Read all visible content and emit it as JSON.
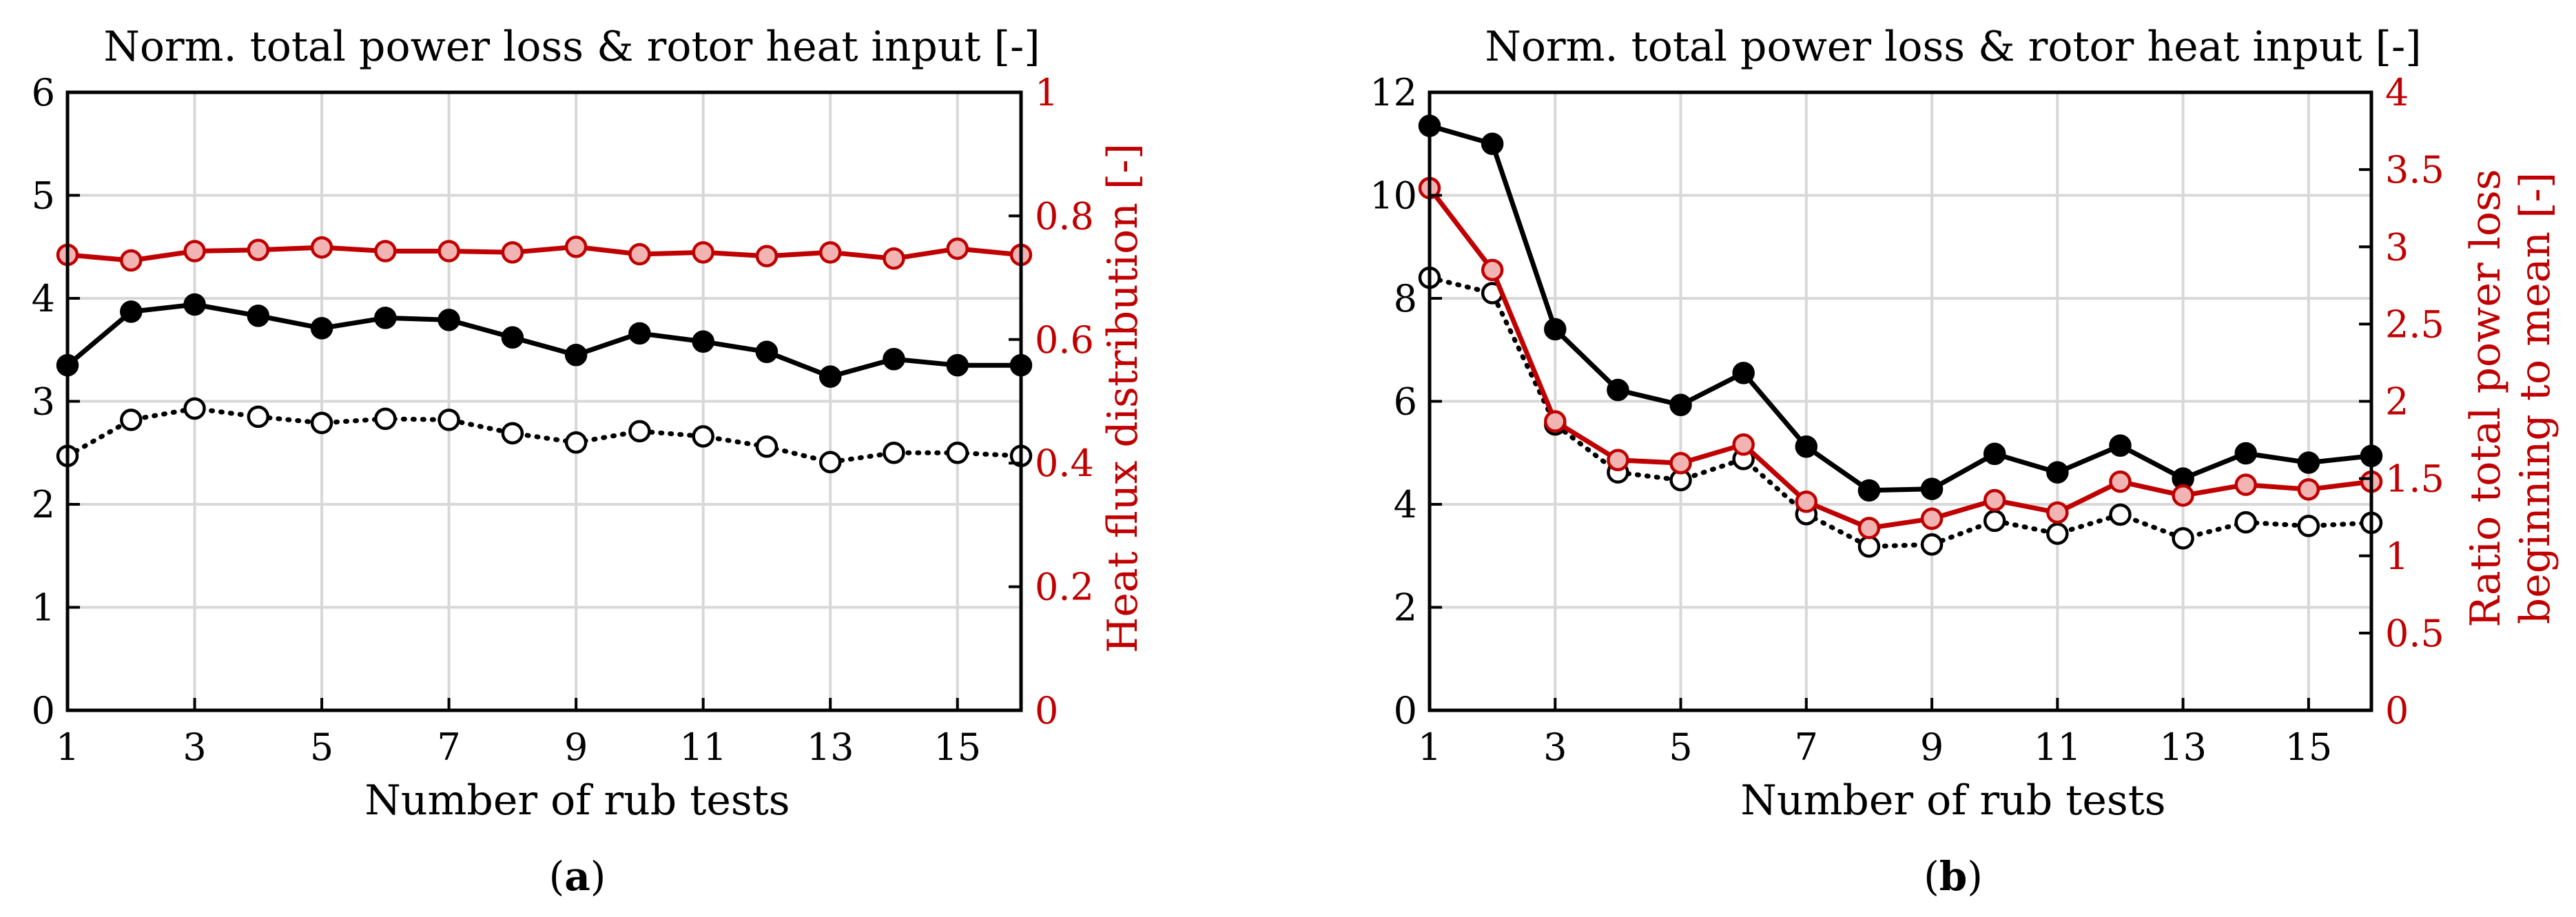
{
  "colors": {
    "black": "#000000",
    "red": "#c00000",
    "red_fill": "#f2b3b3",
    "grid": "#d8d8d8"
  },
  "chart_data": [
    {
      "type": "line",
      "panel_label": [
        "(",
        "a",
        ")"
      ],
      "title": "Norm. total power loss & rotor heat input [-]",
      "xlabel": "Number of rub tests",
      "ylabel_right": "Heat flux distribution [-]",
      "xlim": [
        1,
        16
      ],
      "x_ticks": [
        "1",
        "3",
        "5",
        "7",
        "9",
        "11",
        "13",
        "15"
      ],
      "x_tick_values": [
        1,
        3,
        5,
        7,
        9,
        11,
        13,
        15
      ],
      "ylim_left": [
        0,
        6
      ],
      "y_ticks_left": [
        "0",
        "1",
        "2",
        "3",
        "4",
        "5",
        "6"
      ],
      "y_tick_values_left": [
        0,
        1,
        2,
        3,
        4,
        5,
        6
      ],
      "ylim_right": [
        0,
        1
      ],
      "y_ticks_right": [
        "0",
        "0.2",
        "0.4",
        "0.6",
        "0.8",
        "1"
      ],
      "y_tick_values_right": [
        0,
        0.2,
        0.4,
        0.6,
        0.8,
        1
      ],
      "x": [
        1,
        2,
        3,
        4,
        5,
        6,
        7,
        8,
        9,
        10,
        11,
        12,
        13,
        14,
        15,
        16
      ],
      "series": [
        {
          "name": "Norm. total power loss",
          "axis": "left",
          "style": "solid-black-filled",
          "values": [
            3.35,
            3.87,
            3.94,
            3.83,
            3.71,
            3.81,
            3.79,
            3.62,
            3.45,
            3.66,
            3.58,
            3.48,
            3.24,
            3.41,
            3.35,
            3.35
          ]
        },
        {
          "name": "Norm. rotor heat input",
          "axis": "left",
          "style": "dotted-black-open",
          "values": [
            2.47,
            2.82,
            2.93,
            2.85,
            2.79,
            2.83,
            2.82,
            2.69,
            2.6,
            2.71,
            2.66,
            2.56,
            2.41,
            2.5,
            2.5,
            2.47
          ]
        },
        {
          "name": "Heat flux distribution",
          "axis": "right",
          "style": "solid-red-filled",
          "values": [
            0.737,
            0.728,
            0.743,
            0.745,
            0.749,
            0.743,
            0.743,
            0.741,
            0.75,
            0.738,
            0.741,
            0.735,
            0.741,
            0.731,
            0.747,
            0.737
          ]
        }
      ]
    },
    {
      "type": "line",
      "panel_label": [
        "(",
        "b",
        ")"
      ],
      "title": "Norm. total power loss & rotor heat input [-]",
      "xlabel": "Number of rub tests",
      "ylabel_right": [
        "Ratio total power loss",
        "beginning to mean [-]"
      ],
      "xlim": [
        1,
        16
      ],
      "x_ticks": [
        "1",
        "3",
        "5",
        "7",
        "9",
        "11",
        "13",
        "15"
      ],
      "x_tick_values": [
        1,
        3,
        5,
        7,
        9,
        11,
        13,
        15
      ],
      "ylim_left": [
        0,
        12
      ],
      "y_ticks_left": [
        "0",
        "2",
        "4",
        "6",
        "8",
        "10",
        "12"
      ],
      "y_tick_values_left": [
        0,
        2,
        4,
        6,
        8,
        10,
        12
      ],
      "ylim_right": [
        0,
        4
      ],
      "y_ticks_right": [
        "0",
        "0.5",
        "1",
        "1.5",
        "2",
        "2.5",
        "3",
        "3.5",
        "4"
      ],
      "y_tick_values_right": [
        0,
        0.5,
        1,
        1.5,
        2,
        2.5,
        3,
        3.5,
        4
      ],
      "x": [
        1,
        2,
        3,
        4,
        5,
        6,
        7,
        8,
        9,
        10,
        11,
        12,
        13,
        14,
        15,
        16
      ],
      "series": [
        {
          "name": "Norm. total power loss",
          "axis": "left",
          "style": "solid-black-filled",
          "values": [
            11.35,
            11.0,
            7.4,
            6.22,
            5.93,
            6.55,
            5.12,
            4.27,
            4.3,
            4.98,
            4.62,
            5.14,
            4.5,
            4.99,
            4.81,
            4.94
          ]
        },
        {
          "name": "Norm. rotor heat input",
          "axis": "left",
          "style": "dotted-black-open",
          "values": [
            8.4,
            8.1,
            5.55,
            4.62,
            4.47,
            4.88,
            3.81,
            3.18,
            3.22,
            3.68,
            3.43,
            3.8,
            3.34,
            3.65,
            3.58,
            3.64
          ]
        },
        {
          "name": "Ratio total power loss beginning to mean",
          "axis": "right",
          "style": "solid-red-filled",
          "values": [
            3.38,
            2.85,
            1.87,
            1.62,
            1.6,
            1.72,
            1.35,
            1.18,
            1.24,
            1.36,
            1.28,
            1.48,
            1.39,
            1.46,
            1.43,
            1.48
          ]
        }
      ]
    }
  ]
}
